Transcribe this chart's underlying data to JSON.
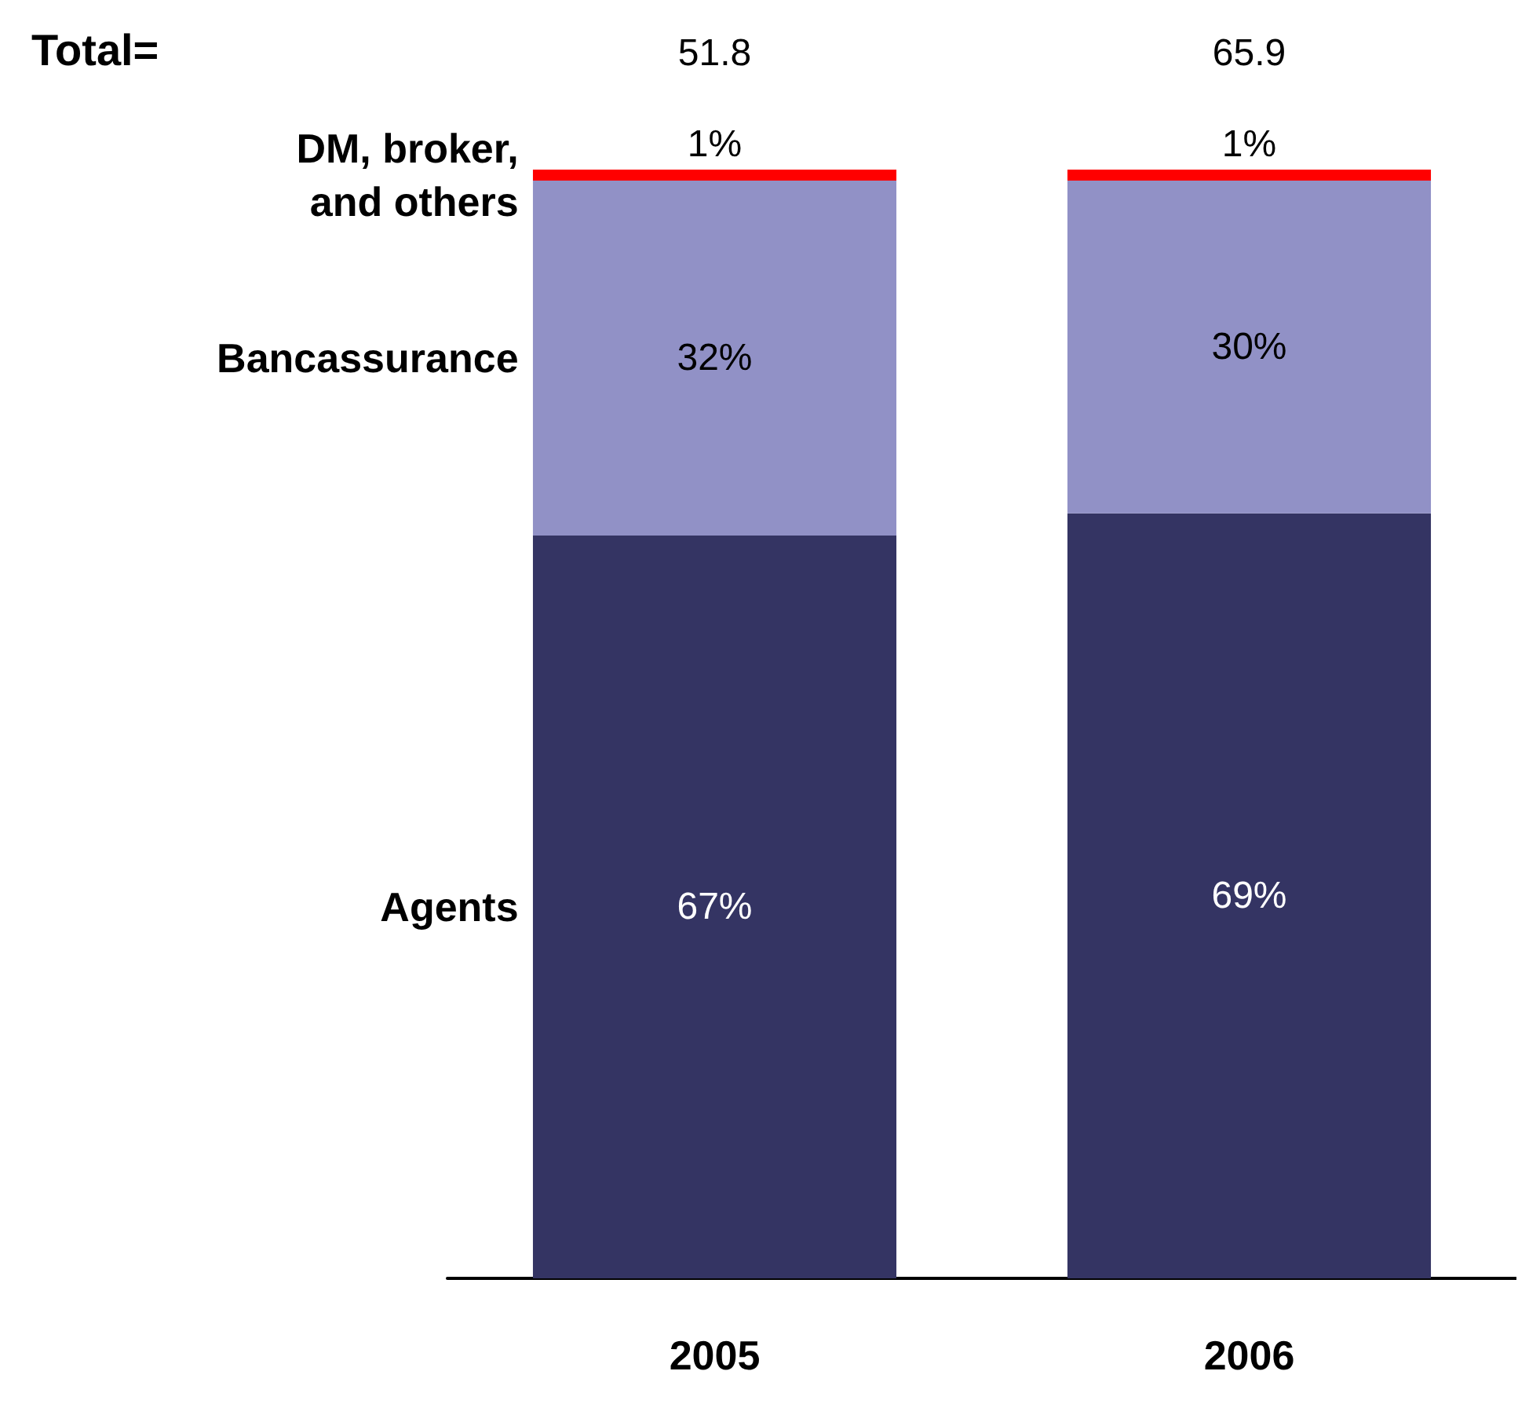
{
  "chart_data": {
    "type": "bar",
    "stacked": true,
    "legend": false,
    "categories": [
      "2005",
      "2006"
    ],
    "series": [
      {
        "name": "Agents",
        "color": "#343463",
        "values": [
          67,
          69
        ],
        "value_labels": [
          "67%",
          "69%"
        ]
      },
      {
        "name": "Bancassurance",
        "color": "#9191c6",
        "values": [
          32,
          30
        ],
        "value_labels": [
          "32%",
          "30%"
        ]
      },
      {
        "name": "DM, broker,\nand others",
        "color": "#ff0000",
        "values": [
          1,
          1
        ],
        "value_labels": [
          "1%",
          "1%"
        ]
      }
    ],
    "annotations": [
      "Total=",
      "51.8",
      "65.9"
    ]
  }
}
